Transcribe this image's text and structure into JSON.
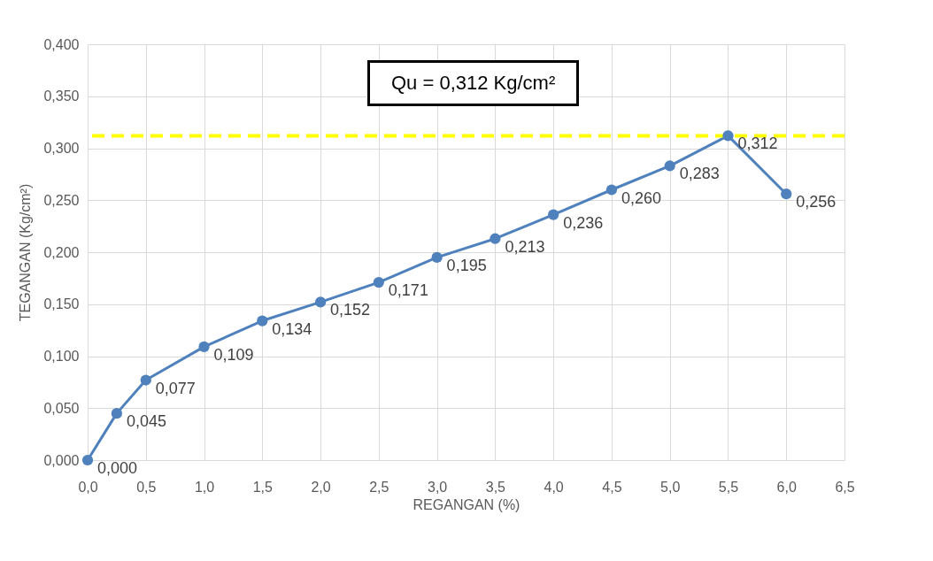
{
  "chart_data": {
    "type": "line",
    "xlabel": "REGANGAN (%)",
    "ylabel": "TEGANGAN (Kg/cm²)",
    "x": [
      0,
      0.25,
      0.5,
      1.0,
      1.5,
      2.0,
      2.5,
      3.0,
      3.5,
      4.0,
      4.5,
      5.0,
      5.5,
      6.0
    ],
    "series": [
      {
        "color": "#4f81bd",
        "values": [
          0.0,
          0.045,
          0.077,
          0.109,
          0.134,
          0.152,
          0.171,
          0.195,
          0.213,
          0.236,
          0.26,
          0.283,
          0.312,
          0.256
        ],
        "value_labels": [
          "0,000",
          "0,045",
          "0,077",
          "0,109",
          "0,134",
          "0,152",
          "0,171",
          "0,195",
          "0,213",
          "0,236",
          "0,260",
          "0,283",
          "0,312",
          "0,256"
        ]
      }
    ],
    "xlim": [
      0,
      6.5
    ],
    "xticks": [
      {
        "value": 0,
        "label": "0,0"
      },
      {
        "value": 0.5,
        "label": "0,5"
      },
      {
        "value": 1,
        "label": "1,0"
      },
      {
        "value": 1.5,
        "label": "1,5"
      },
      {
        "value": 2,
        "label": "2,0"
      },
      {
        "value": 2.5,
        "label": "2,5"
      },
      {
        "value": 3,
        "label": "3,0"
      },
      {
        "value": 3.5,
        "label": "3,5"
      },
      {
        "value": 4,
        "label": "4,0"
      },
      {
        "value": 4.5,
        "label": "4,5"
      },
      {
        "value": 5,
        "label": "5,0"
      },
      {
        "value": 5.5,
        "label": "5,5"
      },
      {
        "value": 6,
        "label": "6,0"
      },
      {
        "value": 6.5,
        "label": "6,5"
      }
    ],
    "ylim": [
      0,
      0.4
    ],
    "yticks": [
      {
        "value": 0,
        "label": "0,000"
      },
      {
        "value": 0.05,
        "label": "0,050"
      },
      {
        "value": 0.1,
        "label": "0,100"
      },
      {
        "value": 0.15,
        "label": "0,150"
      },
      {
        "value": 0.2,
        "label": "0,200"
      },
      {
        "value": 0.25,
        "label": "0,250"
      },
      {
        "value": 0.3,
        "label": "0,300"
      },
      {
        "value": 0.35,
        "label": "0,350"
      },
      {
        "value": 0.4,
        "label": "0,400"
      }
    ],
    "ref_lines": [
      {
        "axis": "y",
        "value": 0.312,
        "color": "#ffff00",
        "line_style": "dashed"
      }
    ],
    "annotations": [
      "Qu = 0,312 Kg/cm²"
    ],
    "grid": true,
    "marker": "circle",
    "line_style": "solid"
  }
}
